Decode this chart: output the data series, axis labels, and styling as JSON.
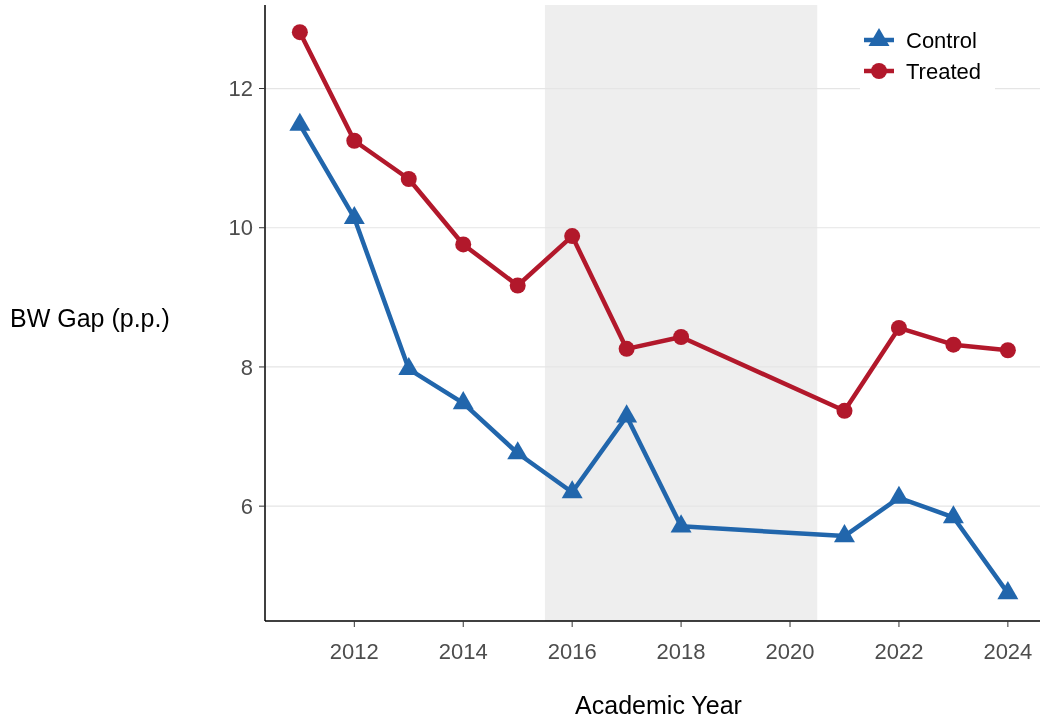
{
  "chart_data": {
    "type": "line",
    "xlabel": "Academic Year",
    "ylabel": "BW Gap (p.p.)",
    "x": [
      2011,
      2012,
      2013,
      2014,
      2015,
      2016,
      2017,
      2018,
      2021,
      2022,
      2023,
      2024
    ],
    "series": [
      {
        "name": "Control",
        "color": "#2166ac",
        "marker": "triangle",
        "values": [
          11.48,
          10.14,
          7.97,
          7.48,
          6.76,
          6.2,
          7.29,
          5.71,
          5.57,
          6.12,
          5.84,
          4.75
        ]
      },
      {
        "name": "Treated",
        "color": "#b2182b",
        "marker": "circle",
        "values": [
          12.81,
          11.25,
          10.7,
          9.76,
          9.17,
          9.88,
          8.26,
          8.43,
          7.37,
          8.56,
          8.32,
          8.24
        ]
      }
    ],
    "xlim": [
      2010.36,
      2024.59
    ],
    "ylim": [
      4.35,
      13.2
    ],
    "xticks": [
      2012,
      2014,
      2016,
      2018,
      2020,
      2022,
      2024
    ],
    "yticks": [
      6,
      8,
      10,
      12
    ],
    "bands": [
      {
        "axis": "x",
        "from": 2015.5,
        "to": 2020.5,
        "color": "#eeeeee"
      }
    ],
    "grid": "y",
    "legend": "top right",
    "line_style": "solid"
  }
}
